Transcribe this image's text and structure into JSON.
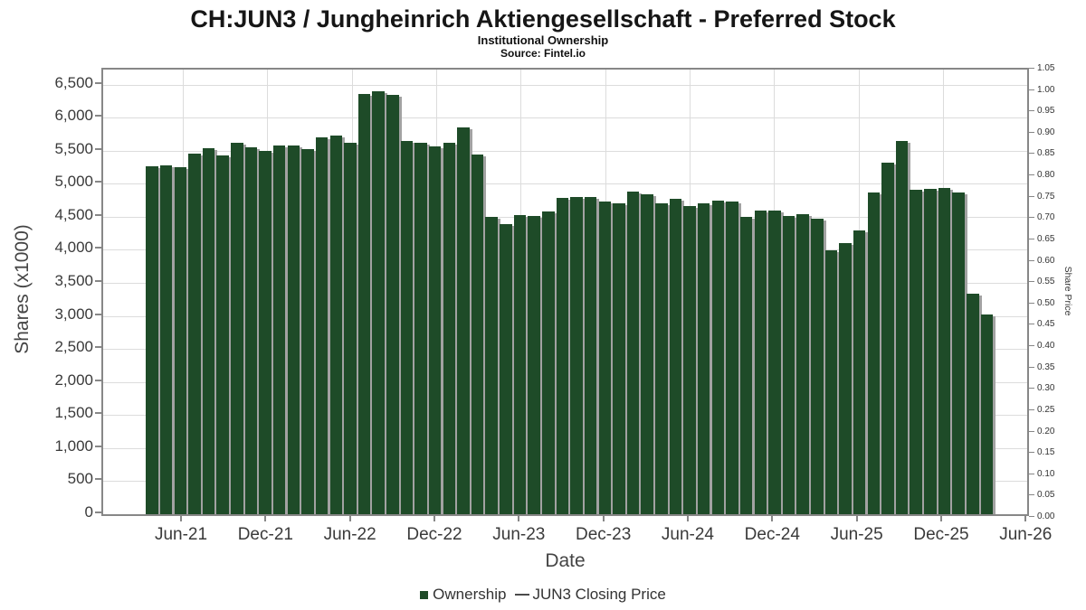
{
  "chart_data": {
    "type": "bar",
    "title": "CH:JUN3 / Jungheinrich Aktiengesellschaft - Preferred Stock",
    "subtitle": "Institutional Ownership",
    "source": "Source: Fintel.io",
    "xlabel": "Date",
    "y_left": {
      "label": "Shares (x1000)",
      "min": 0,
      "max": 6500,
      "step": 500
    },
    "y_right": {
      "label": "Share Price",
      "min": 0.0,
      "max": 1.05,
      "step": 0.05
    },
    "x_tick_labels": [
      "Jun-21",
      "Dec-21",
      "Jun-22",
      "Dec-22",
      "Jun-23",
      "Dec-23",
      "Jun-24",
      "Dec-24",
      "Jun-25",
      "Dec-25",
      "Jun-26"
    ],
    "grid": true,
    "legend_position": "bottom-center",
    "bar_color": "#1e4b28",
    "bar_shadow_color": "#a2a2a2",
    "legend": [
      {
        "label": "Ownership",
        "swatch": "square",
        "color": "#1e4b28"
      },
      {
        "label": "JUN3 Closing Price",
        "swatch": "line",
        "color": "#4a4a4a"
      }
    ],
    "series": [
      {
        "name": "Ownership",
        "unit": "shares (x1000)",
        "points": [
          [
            "Apr-21",
            5270
          ],
          [
            "May-21",
            5280
          ],
          [
            "Jun-21",
            5255
          ],
          [
            "Jul-21",
            5450
          ],
          [
            "Aug-21",
            5540
          ],
          [
            "Sep-21",
            5430
          ],
          [
            "Oct-21",
            5625
          ],
          [
            "Nov-21",
            5555
          ],
          [
            "Dec-21",
            5495
          ],
          [
            "Jan-22",
            5580
          ],
          [
            "Feb-22",
            5580
          ],
          [
            "Mar-22",
            5530
          ],
          [
            "Apr-22",
            5700
          ],
          [
            "May-22",
            5725
          ],
          [
            "Jun-22",
            5620
          ],
          [
            "Jul-22",
            6355
          ],
          [
            "Aug-22",
            6395
          ],
          [
            "Sep-22",
            6345
          ],
          [
            "Oct-22",
            5645
          ],
          [
            "Nov-22",
            5625
          ],
          [
            "Dec-22",
            5560
          ],
          [
            "Jan-23",
            5620
          ],
          [
            "Feb-23",
            5850
          ],
          [
            "Mar-23",
            5440
          ],
          [
            "Apr-23",
            4500
          ],
          [
            "May-23",
            4395
          ],
          [
            "Jun-23",
            4530
          ],
          [
            "Jul-23",
            4510
          ],
          [
            "Aug-23",
            4575
          ],
          [
            "Sep-23",
            4790
          ],
          [
            "Oct-23",
            4800
          ],
          [
            "Nov-23",
            4800
          ],
          [
            "Dec-23",
            4735
          ],
          [
            "Jan-24",
            4705
          ],
          [
            "Feb-24",
            4885
          ],
          [
            "Mar-24",
            4835
          ],
          [
            "Apr-24",
            4700
          ],
          [
            "May-24",
            4770
          ],
          [
            "Jun-24",
            4660
          ],
          [
            "Jul-24",
            4700
          ],
          [
            "Aug-24",
            4745
          ],
          [
            "Sep-24",
            4730
          ],
          [
            "Oct-24",
            4500
          ],
          [
            "Nov-24",
            4600
          ],
          [
            "Dec-24",
            4595
          ],
          [
            "Jan-25",
            4515
          ],
          [
            "Feb-25",
            4535
          ],
          [
            "Mar-25",
            4465
          ],
          [
            "Apr-25",
            3990
          ],
          [
            "May-25",
            4100
          ],
          [
            "Jun-25",
            4290
          ],
          [
            "Jul-25",
            4865
          ],
          [
            "Aug-25",
            5325
          ],
          [
            "Sep-25",
            5645
          ],
          [
            "Oct-25",
            4910
          ],
          [
            "Nov-25",
            4915
          ],
          [
            "Dec-25",
            4930
          ],
          [
            "Jan-26",
            4870
          ],
          [
            "Feb-26",
            3330
          ],
          [
            "Mar-26",
            3020
          ]
        ]
      }
    ]
  }
}
